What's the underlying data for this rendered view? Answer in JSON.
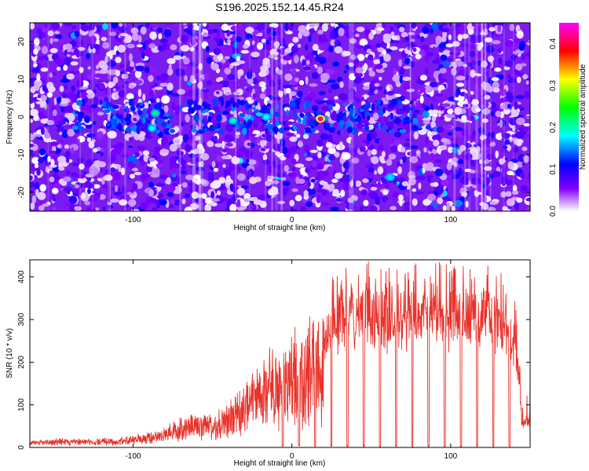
{
  "title": "S196.2025.152.14.45.R24",
  "chart_data": [
    {
      "type": "heatmap",
      "xlabel": "Height of straight line (km)",
      "ylabel": "Frequency (Hz)",
      "xlim": [
        -165,
        150
      ],
      "ylim": [
        -25,
        25
      ],
      "x_ticks": [
        "-100",
        "0",
        "100"
      ],
      "y_ticks": [
        "-20",
        "-10",
        "0",
        "10",
        "20"
      ],
      "colorbar": {
        "label": "Normalized spectral amplitude",
        "range": [
          0,
          0.45
        ],
        "ticks": [
          "0.0",
          "0.1",
          "0.2",
          "0.3",
          "0.4"
        ],
        "colormap": [
          "#ffffff",
          "#8000ff",
          "#0000ff",
          "#00ffff",
          "#00ff00",
          "#ffff00",
          "#ff0000",
          "#ff00ff"
        ]
      },
      "hotspots": [
        {
          "x": 18,
          "y": -0.5,
          "value": 0.42
        },
        {
          "x": -86,
          "y": 1,
          "value": 0.22
        },
        {
          "x": -88,
          "y": -3,
          "value": 0.18
        },
        {
          "x": -37,
          "y": -1,
          "value": 0.2
        },
        {
          "x": -16,
          "y": 0,
          "value": 0.18
        },
        {
          "x": 62,
          "y": -16,
          "value": 0.17
        }
      ]
    },
    {
      "type": "line",
      "xlabel": "Height of straight line (km)",
      "ylabel": "SNR (10 * v/v)",
      "xlim": [
        -165,
        150
      ],
      "ylim": [
        0,
        440
      ],
      "x_ticks": [
        "-100",
        "0",
        "100"
      ],
      "y_ticks": [
        "0",
        "100",
        "200",
        "300",
        "400"
      ],
      "color": "#e8322a",
      "series": [
        {
          "name": "",
          "x": [
            -165,
            -150,
            -130,
            -110,
            -95,
            -80,
            -70,
            -55,
            -45,
            -35,
            -25,
            -15,
            -5,
            0,
            5,
            15,
            25,
            35,
            45,
            60,
            75,
            90,
            105,
            120,
            135,
            142,
            145,
            150
          ],
          "y": [
            15,
            20,
            20,
            22,
            30,
            45,
            65,
            80,
            90,
            120,
            160,
            210,
            240,
            260,
            270,
            290,
            310,
            340,
            350,
            340,
            350,
            350,
            340,
            340,
            330,
            240,
            60,
            80
          ]
        }
      ]
    }
  ]
}
